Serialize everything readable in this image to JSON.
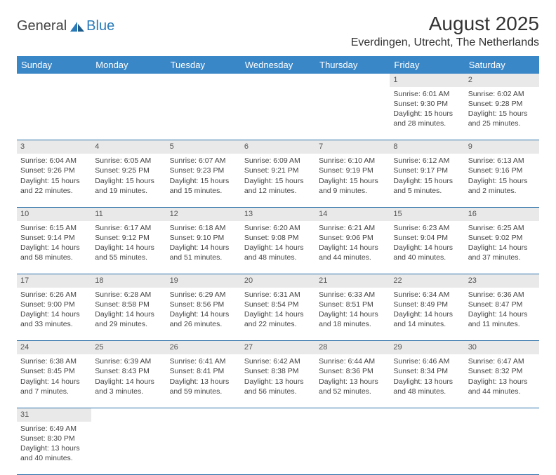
{
  "logo": {
    "word1": "General",
    "word2": "Blue"
  },
  "title": "August 2025",
  "location": "Everdingen, Utrecht, The Netherlands",
  "colors": {
    "header_bg": "#3a87c7",
    "header_text": "#ffffff",
    "daynum_bg": "#e9e9e9",
    "row_border": "#2a6fa8",
    "logo_blue": "#2a7ab8"
  },
  "weekdays": [
    "Sunday",
    "Monday",
    "Tuesday",
    "Wednesday",
    "Thursday",
    "Friday",
    "Saturday"
  ],
  "weeks": [
    [
      null,
      null,
      null,
      null,
      null,
      {
        "n": "1",
        "sr": "Sunrise: 6:01 AM",
        "ss": "Sunset: 9:30 PM",
        "dl1": "Daylight: 15 hours",
        "dl2": "and 28 minutes."
      },
      {
        "n": "2",
        "sr": "Sunrise: 6:02 AM",
        "ss": "Sunset: 9:28 PM",
        "dl1": "Daylight: 15 hours",
        "dl2": "and 25 minutes."
      }
    ],
    [
      {
        "n": "3",
        "sr": "Sunrise: 6:04 AM",
        "ss": "Sunset: 9:26 PM",
        "dl1": "Daylight: 15 hours",
        "dl2": "and 22 minutes."
      },
      {
        "n": "4",
        "sr": "Sunrise: 6:05 AM",
        "ss": "Sunset: 9:25 PM",
        "dl1": "Daylight: 15 hours",
        "dl2": "and 19 minutes."
      },
      {
        "n": "5",
        "sr": "Sunrise: 6:07 AM",
        "ss": "Sunset: 9:23 PM",
        "dl1": "Daylight: 15 hours",
        "dl2": "and 15 minutes."
      },
      {
        "n": "6",
        "sr": "Sunrise: 6:09 AM",
        "ss": "Sunset: 9:21 PM",
        "dl1": "Daylight: 15 hours",
        "dl2": "and 12 minutes."
      },
      {
        "n": "7",
        "sr": "Sunrise: 6:10 AM",
        "ss": "Sunset: 9:19 PM",
        "dl1": "Daylight: 15 hours",
        "dl2": "and 9 minutes."
      },
      {
        "n": "8",
        "sr": "Sunrise: 6:12 AM",
        "ss": "Sunset: 9:17 PM",
        "dl1": "Daylight: 15 hours",
        "dl2": "and 5 minutes."
      },
      {
        "n": "9",
        "sr": "Sunrise: 6:13 AM",
        "ss": "Sunset: 9:16 PM",
        "dl1": "Daylight: 15 hours",
        "dl2": "and 2 minutes."
      }
    ],
    [
      {
        "n": "10",
        "sr": "Sunrise: 6:15 AM",
        "ss": "Sunset: 9:14 PM",
        "dl1": "Daylight: 14 hours",
        "dl2": "and 58 minutes."
      },
      {
        "n": "11",
        "sr": "Sunrise: 6:17 AM",
        "ss": "Sunset: 9:12 PM",
        "dl1": "Daylight: 14 hours",
        "dl2": "and 55 minutes."
      },
      {
        "n": "12",
        "sr": "Sunrise: 6:18 AM",
        "ss": "Sunset: 9:10 PM",
        "dl1": "Daylight: 14 hours",
        "dl2": "and 51 minutes."
      },
      {
        "n": "13",
        "sr": "Sunrise: 6:20 AM",
        "ss": "Sunset: 9:08 PM",
        "dl1": "Daylight: 14 hours",
        "dl2": "and 48 minutes."
      },
      {
        "n": "14",
        "sr": "Sunrise: 6:21 AM",
        "ss": "Sunset: 9:06 PM",
        "dl1": "Daylight: 14 hours",
        "dl2": "and 44 minutes."
      },
      {
        "n": "15",
        "sr": "Sunrise: 6:23 AM",
        "ss": "Sunset: 9:04 PM",
        "dl1": "Daylight: 14 hours",
        "dl2": "and 40 minutes."
      },
      {
        "n": "16",
        "sr": "Sunrise: 6:25 AM",
        "ss": "Sunset: 9:02 PM",
        "dl1": "Daylight: 14 hours",
        "dl2": "and 37 minutes."
      }
    ],
    [
      {
        "n": "17",
        "sr": "Sunrise: 6:26 AM",
        "ss": "Sunset: 9:00 PM",
        "dl1": "Daylight: 14 hours",
        "dl2": "and 33 minutes."
      },
      {
        "n": "18",
        "sr": "Sunrise: 6:28 AM",
        "ss": "Sunset: 8:58 PM",
        "dl1": "Daylight: 14 hours",
        "dl2": "and 29 minutes."
      },
      {
        "n": "19",
        "sr": "Sunrise: 6:29 AM",
        "ss": "Sunset: 8:56 PM",
        "dl1": "Daylight: 14 hours",
        "dl2": "and 26 minutes."
      },
      {
        "n": "20",
        "sr": "Sunrise: 6:31 AM",
        "ss": "Sunset: 8:54 PM",
        "dl1": "Daylight: 14 hours",
        "dl2": "and 22 minutes."
      },
      {
        "n": "21",
        "sr": "Sunrise: 6:33 AM",
        "ss": "Sunset: 8:51 PM",
        "dl1": "Daylight: 14 hours",
        "dl2": "and 18 minutes."
      },
      {
        "n": "22",
        "sr": "Sunrise: 6:34 AM",
        "ss": "Sunset: 8:49 PM",
        "dl1": "Daylight: 14 hours",
        "dl2": "and 14 minutes."
      },
      {
        "n": "23",
        "sr": "Sunrise: 6:36 AM",
        "ss": "Sunset: 8:47 PM",
        "dl1": "Daylight: 14 hours",
        "dl2": "and 11 minutes."
      }
    ],
    [
      {
        "n": "24",
        "sr": "Sunrise: 6:38 AM",
        "ss": "Sunset: 8:45 PM",
        "dl1": "Daylight: 14 hours",
        "dl2": "and 7 minutes."
      },
      {
        "n": "25",
        "sr": "Sunrise: 6:39 AM",
        "ss": "Sunset: 8:43 PM",
        "dl1": "Daylight: 14 hours",
        "dl2": "and 3 minutes."
      },
      {
        "n": "26",
        "sr": "Sunrise: 6:41 AM",
        "ss": "Sunset: 8:41 PM",
        "dl1": "Daylight: 13 hours",
        "dl2": "and 59 minutes."
      },
      {
        "n": "27",
        "sr": "Sunrise: 6:42 AM",
        "ss": "Sunset: 8:38 PM",
        "dl1": "Daylight: 13 hours",
        "dl2": "and 56 minutes."
      },
      {
        "n": "28",
        "sr": "Sunrise: 6:44 AM",
        "ss": "Sunset: 8:36 PM",
        "dl1": "Daylight: 13 hours",
        "dl2": "and 52 minutes."
      },
      {
        "n": "29",
        "sr": "Sunrise: 6:46 AM",
        "ss": "Sunset: 8:34 PM",
        "dl1": "Daylight: 13 hours",
        "dl2": "and 48 minutes."
      },
      {
        "n": "30",
        "sr": "Sunrise: 6:47 AM",
        "ss": "Sunset: 8:32 PM",
        "dl1": "Daylight: 13 hours",
        "dl2": "and 44 minutes."
      }
    ],
    [
      {
        "n": "31",
        "sr": "Sunrise: 6:49 AM",
        "ss": "Sunset: 8:30 PM",
        "dl1": "Daylight: 13 hours",
        "dl2": "and 40 minutes."
      },
      null,
      null,
      null,
      null,
      null,
      null
    ]
  ]
}
